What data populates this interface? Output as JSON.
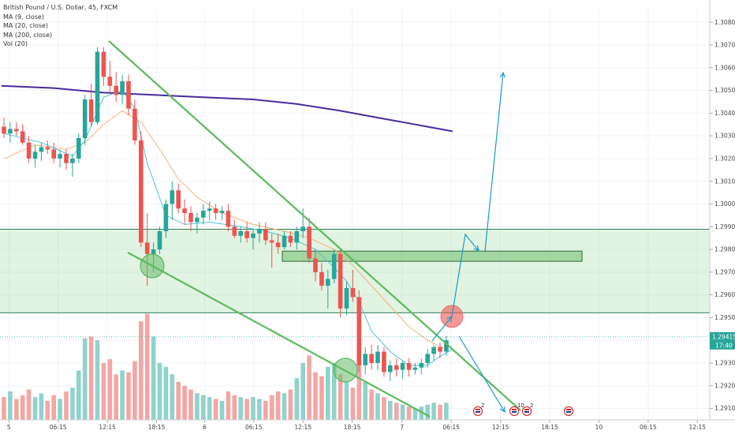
{
  "legend": {
    "symbol": "British Pound / U.S. Dollar, 45, FXCM",
    "ma9": "MA (9, close)",
    "ma20": "MA (20, close)",
    "ma200": "MA (200, close)",
    "vol": "Vol (20)"
  },
  "colors": {
    "up": "#26a69a",
    "down": "#ef5350",
    "vol_up": "#8fd3cb",
    "vol_down": "#f4a6a4",
    "ma9": "#4fc3d7",
    "ma20": "#f5b27a",
    "ma200": "#4a2a9b",
    "trend": "#5cbb5c",
    "zone_fill": "rgba(120,200,120,0.22)",
    "zone_line": "#2e7d5b",
    "arrow": "#1a9bc8",
    "current_price": "#26a69a"
  },
  "chart_data": {
    "type": "candlestick",
    "ylim": [
      1.2905,
      1.3087
    ],
    "y_ticks": [
      "1.30800",
      "1.30700",
      "1.30600",
      "1.30500",
      "1.30400",
      "1.30300",
      "1.30200",
      "1.30100",
      "1.30000",
      "1.29900",
      "1.29800",
      "1.29700",
      "1.29600",
      "1.29500",
      "1.29400",
      "1.29300",
      "1.29200",
      "1.29100"
    ],
    "x_ticks": [
      {
        "label": "5",
        "bar": 0.8
      },
      {
        "label": "06:15",
        "bar": 8.7
      },
      {
        "label": "12:15",
        "bar": 16.6
      },
      {
        "label": "18:15",
        "bar": 24.5
      },
      {
        "label": "6",
        "bar": 32.2
      },
      {
        "label": "06:15",
        "bar": 40.1
      },
      {
        "label": "12:15",
        "bar": 48.0
      },
      {
        "label": "18:15",
        "bar": 55.9
      },
      {
        "label": "7",
        "bar": 63.9
      },
      {
        "label": "06:15",
        "bar": 71.8
      },
      {
        "label": "12:15",
        "bar": 79.7
      },
      {
        "label": "18:15",
        "bar": 87.6
      },
      {
        "label": "10",
        "bar": 95.5
      },
      {
        "label": "06:15",
        "bar": 103.4
      },
      {
        "label": "12:15",
        "bar": 111.3
      }
    ],
    "candles": [
      [
        1.3034,
        1.3038,
        1.3029,
        1.3031,
        120
      ],
      [
        1.3031,
        1.3036,
        1.3027,
        1.3033,
        150
      ],
      [
        1.3033,
        1.3036,
        1.303,
        1.3032,
        110
      ],
      [
        1.3032,
        1.3035,
        1.3026,
        1.3027,
        130
      ],
      [
        1.3027,
        1.303,
        1.3018,
        1.302,
        160
      ],
      [
        1.302,
        1.3026,
        1.3016,
        1.3023,
        120
      ],
      [
        1.3023,
        1.3027,
        1.3019,
        1.3025,
        140
      ],
      [
        1.3025,
        1.3028,
        1.3022,
        1.3024,
        100
      ],
      [
        1.3024,
        1.3027,
        1.3018,
        1.302,
        130
      ],
      [
        1.302,
        1.3024,
        1.3016,
        1.3022,
        110
      ],
      [
        1.3022,
        1.3024,
        1.3015,
        1.3018,
        150
      ],
      [
        1.3018,
        1.3022,
        1.3012,
        1.302,
        170
      ],
      [
        1.302,
        1.3031,
        1.3018,
        1.3029,
        260
      ],
      [
        1.3029,
        1.3048,
        1.3026,
        1.3046,
        430
      ],
      [
        1.3046,
        1.3053,
        1.3034,
        1.3036,
        440
      ],
      [
        1.3036,
        1.3069,
        1.3035,
        1.3067,
        420
      ],
      [
        1.3067,
        1.3069,
        1.3052,
        1.3056,
        300
      ],
      [
        1.3056,
        1.3063,
        1.3049,
        1.3052,
        320
      ],
      [
        1.3052,
        1.3058,
        1.3045,
        1.3048,
        240
      ],
      [
        1.3048,
        1.3057,
        1.3044,
        1.3054,
        260
      ],
      [
        1.3054,
        1.3057,
        1.3039,
        1.3042,
        250
      ],
      [
        1.3042,
        1.3046,
        1.3026,
        1.3028,
        310
      ],
      [
        1.3028,
        1.3032,
        1.2981,
        1.2983,
        520
      ],
      [
        1.2983,
        1.2996,
        1.2964,
        1.2978,
        560
      ],
      [
        1.2978,
        1.2983,
        1.297,
        1.298,
        440
      ],
      [
        1.298,
        1.299,
        1.2978,
        1.2988,
        300
      ],
      [
        1.2988,
        1.3002,
        1.2985,
        1.3,
        280
      ],
      [
        1.3,
        1.301,
        1.2993,
        1.3006,
        240
      ],
      [
        1.3006,
        1.3009,
        1.2996,
        1.2998,
        200
      ],
      [
        1.2998,
        1.3002,
        1.2991,
        1.2996,
        180
      ],
      [
        1.2996,
        1.2999,
        1.2988,
        1.2992,
        160
      ],
      [
        1.2992,
        1.2996,
        1.2987,
        1.2994,
        140
      ],
      [
        1.2994,
        1.3,
        1.2991,
        1.2997,
        130
      ],
      [
        1.2997,
        1.3001,
        1.2993,
        1.2998,
        120
      ],
      [
        1.2998,
        1.3,
        1.2993,
        1.2996,
        110
      ],
      [
        1.2996,
        1.2999,
        1.2993,
        1.2997,
        100
      ],
      [
        1.2997,
        1.3,
        1.2988,
        1.299,
        150
      ],
      [
        1.299,
        1.2993,
        1.2985,
        1.2986,
        130
      ],
      [
        1.2986,
        1.299,
        1.2983,
        1.2988,
        120
      ],
      [
        1.2988,
        1.2992,
        1.2983,
        1.2985,
        110
      ],
      [
        1.2985,
        1.2989,
        1.298,
        1.2987,
        120
      ],
      [
        1.2987,
        1.2992,
        1.2983,
        1.2989,
        110
      ],
      [
        1.2989,
        1.2992,
        1.2982,
        1.2984,
        100
      ],
      [
        1.2984,
        1.2987,
        1.2972,
        1.2983,
        130
      ],
      [
        1.2983,
        1.2987,
        1.2978,
        1.2981,
        150
      ],
      [
        1.2981,
        1.2988,
        1.298,
        1.2986,
        140
      ],
      [
        1.2986,
        1.2988,
        1.2981,
        1.2983,
        160
      ],
      [
        1.2983,
        1.299,
        1.298,
        1.2988,
        220
      ],
      [
        1.2988,
        1.2998,
        1.2985,
        1.299,
        300
      ],
      [
        1.299,
        1.2994,
        1.2974,
        1.2976,
        340
      ],
      [
        1.2976,
        1.298,
        1.2966,
        1.297,
        250
      ],
      [
        1.297,
        1.2974,
        1.2962,
        1.2964,
        230
      ],
      [
        1.2964,
        1.2971,
        1.2954,
        1.2967,
        280
      ],
      [
        1.2967,
        1.298,
        1.2965,
        1.2978,
        300
      ],
      [
        1.2978,
        1.298,
        1.295,
        1.2954,
        240
      ],
      [
        1.2954,
        1.2966,
        1.2951,
        1.2963,
        200
      ],
      [
        1.2963,
        1.2971,
        1.2957,
        1.2959,
        170
      ],
      [
        1.2959,
        1.2962,
        1.2926,
        1.2929,
        360
      ],
      [
        1.2929,
        1.2937,
        1.2925,
        1.2934,
        200
      ],
      [
        1.2934,
        1.2938,
        1.2927,
        1.293,
        160
      ],
      [
        1.293,
        1.2938,
        1.2927,
        1.2935,
        140
      ],
      [
        1.2935,
        1.2937,
        1.2924,
        1.2926,
        120
      ],
      [
        1.2926,
        1.2931,
        1.2922,
        1.2929,
        100
      ],
      [
        1.2929,
        1.2932,
        1.2924,
        1.2927,
        90
      ],
      [
        1.2927,
        1.2931,
        1.2923,
        1.293,
        80
      ],
      [
        1.293,
        1.2932,
        1.2924,
        1.2927,
        70
      ],
      [
        1.2927,
        1.293,
        1.2925,
        1.2928,
        60
      ],
      [
        1.2928,
        1.2932,
        1.2925,
        1.293,
        70
      ],
      [
        1.293,
        1.2936,
        1.2928,
        1.2934,
        80
      ],
      [
        1.2934,
        1.2938,
        1.2931,
        1.2937,
        90
      ],
      [
        1.2937,
        1.2939,
        1.2932,
        1.2935,
        80
      ],
      [
        1.2935,
        1.2942,
        1.2933,
        1.294,
        90
      ]
    ],
    "ma9": [
      [
        0,
        1.3031
      ],
      [
        6,
        1.3027
      ],
      [
        11,
        1.3021
      ],
      [
        13,
        1.3028
      ],
      [
        16,
        1.3047
      ],
      [
        19,
        1.305
      ],
      [
        21,
        1.3042
      ],
      [
        23,
        1.3018
      ],
      [
        26,
        1.2995
      ],
      [
        29,
        1.2991
      ],
      [
        33,
        1.2992
      ],
      [
        38,
        1.299
      ],
      [
        42,
        1.2988
      ],
      [
        46,
        1.2985
      ],
      [
        50,
        1.298
      ],
      [
        53,
        1.2972
      ],
      [
        55,
        1.2966
      ],
      [
        57,
        1.2957
      ],
      [
        59,
        1.2944
      ],
      [
        62,
        1.2935
      ],
      [
        65,
        1.2929
      ],
      [
        68,
        1.2929
      ],
      [
        70,
        1.2933
      ],
      [
        72,
        1.2936
      ]
    ],
    "ma20": [
      [
        0,
        1.302
      ],
      [
        5,
        1.3026
      ],
      [
        10,
        1.3024
      ],
      [
        13,
        1.3027
      ],
      [
        16,
        1.3035
      ],
      [
        19,
        1.3041
      ],
      [
        22,
        1.3036
      ],
      [
        25,
        1.3024
      ],
      [
        28,
        1.3011
      ],
      [
        31,
        1.3003
      ],
      [
        35,
        1.2996
      ],
      [
        40,
        1.2991
      ],
      [
        45,
        1.2988
      ],
      [
        49,
        1.2985
      ],
      [
        53,
        1.298
      ],
      [
        56,
        1.2973
      ],
      [
        59,
        1.2964
      ],
      [
        62,
        1.2955
      ],
      [
        65,
        1.2946
      ],
      [
        68,
        1.294
      ],
      [
        71,
        1.2936
      ]
    ],
    "ma200": [
      [
        -0.4,
        1.3052
      ],
      [
        8,
        1.3051
      ],
      [
        16,
        1.3049
      ],
      [
        24,
        1.3048
      ],
      [
        32,
        1.3047
      ],
      [
        40,
        1.3046
      ],
      [
        47,
        1.3044
      ],
      [
        54,
        1.3041
      ],
      [
        60,
        1.3038
      ],
      [
        64,
        1.3036
      ],
      [
        68,
        1.3034
      ],
      [
        72,
        1.3032
      ]
    ],
    "levels": {
      "zone_top": 1.29889,
      "zone_bottom": 1.29521,
      "zone2_top": 1.29782,
      "zone2_bottom": 1.29765
    },
    "current_price": "1.29415",
    "countdown": "17:40"
  },
  "annotations": {
    "event_badge_count_1": "2",
    "event_badge_count_2": "10",
    "event_badge_count_3": "2"
  }
}
